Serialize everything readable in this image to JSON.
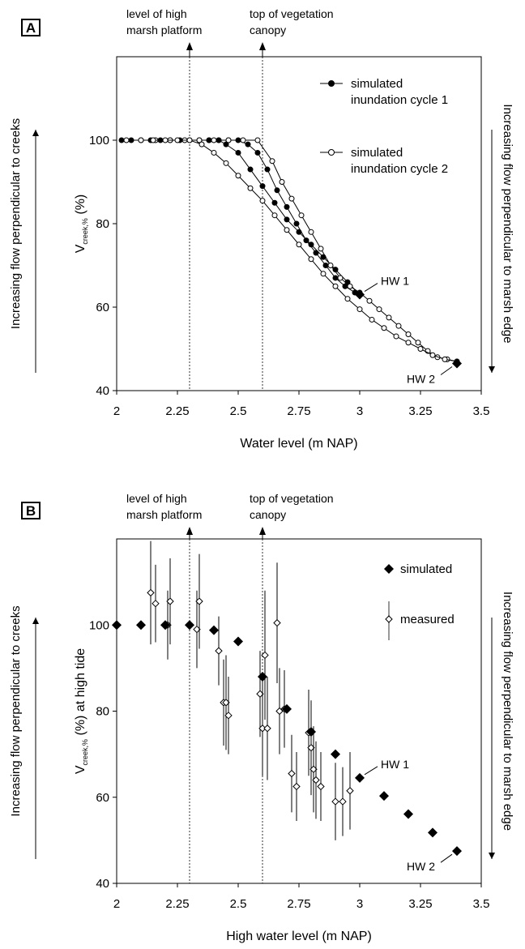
{
  "chart_data": [
    {
      "panel": "A",
      "type": "line",
      "xlabel": "Water level (m NAP)",
      "ylabel_main": "V",
      "ylabel_sub": "creek,%",
      "ylabel_unit": "(%)",
      "xlim": [
        2,
        3.5
      ],
      "ylim": [
        40,
        120
      ],
      "xticks": [
        "2",
        "2.25",
        "2.5",
        "2.75",
        "3",
        "3.25",
        "3.5"
      ],
      "yticks": [
        "40",
        "60",
        "80",
        "100"
      ],
      "left_side_label": "Increasing flow perpendicular to creeks",
      "right_side_label": "Increasing flow perpendicular to marsh edge",
      "reference_lines": [
        {
          "x": 2.3,
          "label_lines": [
            "level of high",
            "marsh platform"
          ]
        },
        {
          "x": 2.6,
          "label_lines": [
            "top of vegetation",
            "canopy"
          ]
        }
      ],
      "annotations": [
        {
          "text": "HW 1",
          "x": 3.0,
          "y": 63
        },
        {
          "text": "HW 2",
          "x": 3.4,
          "y": 46.5
        }
      ],
      "series": [
        {
          "name": "simulated inundation cycle 1",
          "legend_lines": [
            "simulated",
            "inundation cycle 1"
          ],
          "marker": "filled",
          "rising": {
            "x": [
              2.02,
              2.06,
              2.1,
              2.14,
              2.18,
              2.22,
              2.26,
              2.3,
              2.34,
              2.38,
              2.42,
              2.46,
              2.5,
              2.54,
              2.58,
              2.62,
              2.66,
              2.7,
              2.74,
              2.78,
              2.82,
              2.86,
              2.9,
              2.94,
              2.98,
              3.0
            ],
            "y": [
              100,
              100,
              100,
              100,
              100,
              100,
              100,
              100,
              100,
              100,
              100,
              100,
              100,
              99,
              97,
              93,
              88,
              84,
              80,
              76,
              73,
              70,
              67,
              65,
              63.5,
              63
            ]
          },
          "falling": {
            "x": [
              3.0,
              2.95,
              2.9,
              2.85,
              2.8,
              2.75,
              2.7,
              2.65,
              2.6,
              2.55,
              2.5,
              2.45,
              2.42,
              2.38
            ],
            "y": [
              63,
              66,
              69,
              72,
              75,
              78,
              81,
              85,
              89,
              93,
              97,
              99,
              100,
              100
            ]
          }
        },
        {
          "name": "simulated inundation cycle 2",
          "legend_lines": [
            "simulated",
            "inundation cycle 2"
          ],
          "marker": "open",
          "rising": {
            "x": [
              2.04,
              2.1,
              2.16,
              2.22,
              2.28,
              2.34,
              2.4,
              2.46,
              2.52,
              2.58,
              2.64,
              2.68,
              2.72,
              2.76,
              2.8,
              2.84,
              2.88,
              2.92,
              2.96,
              3.0,
              3.04,
              3.08,
              3.12,
              3.16,
              3.2,
              3.24,
              3.28,
              3.32,
              3.36,
              3.4
            ],
            "y": [
              100,
              100,
              100,
              100,
              100,
              100,
              100,
              100,
              100,
              100,
              95,
              90,
              86,
              82,
              78,
              74,
              70,
              67,
              65,
              63.5,
              61.5,
              59.5,
              57.5,
              55.5,
              53.5,
              51.5,
              49.5,
              48,
              47.5,
              47
            ]
          },
          "falling": {
            "x": [
              3.4,
              3.35,
              3.3,
              3.25,
              3.2,
              3.15,
              3.1,
              3.05,
              3.0,
              2.95,
              2.9,
              2.85,
              2.8,
              2.75,
              2.7,
              2.65,
              2.6,
              2.55,
              2.5,
              2.45,
              2.4,
              2.35,
              2.3,
              2.25,
              2.2,
              2.15
            ],
            "y": [
              47,
              47.5,
              48.5,
              50,
              51.5,
              53,
              55,
              57,
              59.5,
              62,
              65,
              68,
              71.5,
              75,
              78.5,
              82,
              85.5,
              88.5,
              91.5,
              94.5,
              97,
              99,
              100,
              100,
              100,
              100
            ]
          }
        }
      ]
    },
    {
      "panel": "B",
      "type": "scatter",
      "xlabel": "High water level (m NAP)",
      "ylabel_main": "V",
      "ylabel_sub": "creek,%",
      "ylabel_unit": "(%) at high tide",
      "xlim": [
        2,
        3.5
      ],
      "ylim": [
        40,
        120
      ],
      "xticks": [
        "2",
        "2.25",
        "2.5",
        "2.75",
        "3",
        "3.25",
        "3.5"
      ],
      "yticks": [
        "40",
        "60",
        "80",
        "100"
      ],
      "left_side_label": "Increasing flow perpendicular to creeks",
      "right_side_label": "Increasing flow perpendicular to marsh edge",
      "reference_lines": [
        {
          "x": 2.3,
          "label_lines": [
            "level of high",
            "marsh platform"
          ]
        },
        {
          "x": 2.6,
          "label_lines": [
            "top of vegetation",
            "canopy"
          ]
        }
      ],
      "annotations": [
        {
          "text": "HW 1",
          "x": 3.0,
          "y": 64.5
        },
        {
          "text": "HW 2",
          "x": 3.4,
          "y": 47.5
        }
      ],
      "series": [
        {
          "name": "simulated",
          "marker": "filled-diamond",
          "x": [
            2.0,
            2.1,
            2.2,
            2.3,
            2.4,
            2.5,
            2.6,
            2.7,
            2.8,
            2.9,
            3.0,
            3.1,
            3.2,
            3.3,
            3.4
          ],
          "y": [
            100,
            100,
            100,
            100,
            98.8,
            96.2,
            88,
            80.5,
            75.2,
            70,
            64.5,
            60.3,
            56.1,
            51.8,
            47.5
          ]
        },
        {
          "name": "measured",
          "marker": "open-diamond-with-error-bar",
          "x": [
            2.14,
            2.16,
            2.21,
            2.22,
            2.33,
            2.34,
            2.42,
            2.44,
            2.45,
            2.46,
            2.59,
            2.6,
            2.61,
            2.62,
            2.66,
            2.67,
            2.69,
            2.79,
            2.8,
            2.81,
            2.82,
            2.84,
            2.9,
            2.93,
            2.96,
            2.72,
            2.74
          ],
          "y": [
            107.5,
            105,
            100,
            105.5,
            99,
            105.5,
            94,
            82,
            82,
            79,
            84,
            76,
            93,
            76,
            100.5,
            80,
            80.5,
            75,
            71.5,
            66.5,
            64,
            62.5,
            59,
            59,
            61.5,
            65.5,
            62.5
          ],
          "err": [
            12,
            9,
            8,
            10,
            9,
            11,
            8,
            10,
            11,
            9,
            10,
            11,
            15,
            12,
            14,
            10,
            9,
            10,
            11,
            10,
            9,
            8,
            9,
            8,
            9,
            9,
            8
          ]
        }
      ]
    }
  ],
  "panel_letters": [
    "A",
    "B"
  ]
}
